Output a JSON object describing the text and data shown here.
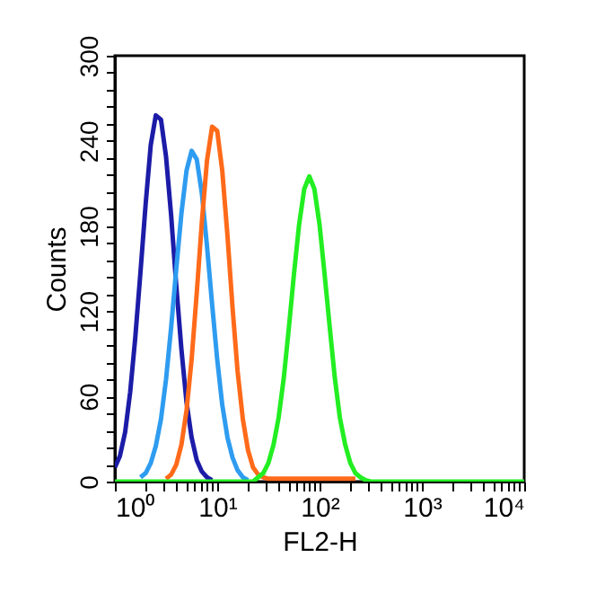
{
  "chart_data": {
    "type": "line",
    "xlabel": "FL2-H",
    "ylabel": "Counts",
    "log": "x",
    "grid": false,
    "legend": false,
    "marker": "none",
    "line_style": "solid",
    "x": [
      1,
      1.12,
      1.26,
      1.41,
      1.58,
      1.78,
      2,
      2.24,
      2.51,
      2.82,
      3.16,
      3.55,
      3.98,
      4.47,
      5.01,
      5.62,
      6.31,
      7.08,
      7.94,
      8.91,
      10,
      11.2,
      12.6,
      14.1,
      15.8,
      17.8,
      20,
      22.4,
      25.1,
      28.2,
      31.6,
      35.5,
      39.8,
      44.7,
      50.1,
      56.2,
      63.1,
      70.8,
      79.4,
      89.1,
      100,
      112,
      126,
      141,
      158,
      178,
      200,
      224,
      251,
      282,
      316,
      355,
      398,
      447,
      501,
      562,
      631,
      708,
      794,
      891,
      1000,
      10000
    ],
    "series": [
      {
        "color": "#1c1ca8",
        "values": [
          10,
          18,
          35,
          63,
          101,
          148,
          196,
          237,
          258,
          255,
          229,
          187,
          138,
          93,
          56,
          31,
          15,
          7,
          3,
          1,
          null,
          null,
          null,
          null,
          null,
          null,
          null,
          null,
          null,
          null,
          null,
          null,
          null,
          null,
          null,
          null,
          null,
          null,
          null,
          null,
          null,
          null,
          null,
          null,
          null,
          null,
          null,
          null,
          null,
          null,
          null,
          null,
          null,
          null,
          null,
          null,
          null,
          null,
          null,
          null,
          null,
          null
        ]
      },
      {
        "color": "#2e9cf0",
        "values": [
          null,
          null,
          null,
          null,
          null,
          3,
          6,
          13,
          25,
          44,
          72,
          109,
          150,
          189,
          219,
          233,
          227,
          203,
          166,
          125,
          86,
          54,
          31,
          17,
          8,
          3,
          1,
          null,
          null,
          null,
          null,
          null,
          null,
          null,
          null,
          null,
          null,
          null,
          null,
          null,
          null,
          null,
          null,
          null,
          null,
          null,
          null,
          null,
          null,
          null,
          null,
          null,
          null,
          null,
          null,
          null,
          null,
          null,
          null,
          null,
          null,
          null
        ]
      },
      {
        "color": "#ff6a1a",
        "values": [
          null,
          null,
          null,
          null,
          null,
          null,
          null,
          null,
          null,
          null,
          2,
          5,
          12,
          26,
          50,
          86,
          133,
          183,
          226,
          250,
          247,
          219,
          173,
          123,
          78,
          44,
          22,
          10,
          5,
          3,
          2,
          2,
          2,
          2,
          2,
          2,
          2,
          2,
          2,
          2,
          2,
          2,
          2,
          2,
          2,
          2,
          2,
          2,
          null,
          null,
          null,
          null,
          null,
          null,
          null,
          null,
          null,
          null,
          null,
          null,
          null,
          null
        ]
      },
      {
        "color": "#22ee22",
        "values": [
          0,
          0,
          0,
          0,
          0,
          0,
          0,
          0,
          0,
          0,
          0,
          0,
          0,
          0,
          0,
          0,
          0,
          0,
          0,
          0,
          0,
          0,
          0,
          0,
          0,
          0,
          0,
          0,
          3,
          6,
          13,
          26,
          45,
          73,
          108,
          146,
          181,
          206,
          215,
          206,
          181,
          146,
          108,
          73,
          45,
          26,
          13,
          6,
          3,
          1,
          0,
          0,
          0,
          0,
          0,
          0,
          0,
          0,
          0,
          0,
          0,
          0
        ]
      }
    ],
    "xlim": [
      1,
      10000
    ],
    "xticks": [
      {
        "value": 1,
        "label": "10⁰"
      },
      {
        "value": 2,
        "label": null
      },
      {
        "value": 3,
        "label": null
      },
      {
        "value": 4,
        "label": null
      },
      {
        "value": 5,
        "label": null
      },
      {
        "value": 6,
        "label": null
      },
      {
        "value": 7,
        "label": null
      },
      {
        "value": 8,
        "label": null
      },
      {
        "value": 9,
        "label": null
      },
      {
        "value": 10,
        "label": "10¹"
      },
      {
        "value": 20,
        "label": null
      },
      {
        "value": 30,
        "label": null
      },
      {
        "value": 40,
        "label": null
      },
      {
        "value": 50,
        "label": null
      },
      {
        "value": 60,
        "label": null
      },
      {
        "value": 70,
        "label": null
      },
      {
        "value": 80,
        "label": null
      },
      {
        "value": 90,
        "label": null
      },
      {
        "value": 100,
        "label": "10²"
      },
      {
        "value": 200,
        "label": null
      },
      {
        "value": 300,
        "label": null
      },
      {
        "value": 400,
        "label": null
      },
      {
        "value": 500,
        "label": null
      },
      {
        "value": 600,
        "label": null
      },
      {
        "value": 700,
        "label": null
      },
      {
        "value": 800,
        "label": null
      },
      {
        "value": 900,
        "label": null
      },
      {
        "value": 1000,
        "label": "10³"
      },
      {
        "value": 2000,
        "label": null
      },
      {
        "value": 3000,
        "label": null
      },
      {
        "value": 4000,
        "label": null
      },
      {
        "value": 5000,
        "label": null
      },
      {
        "value": 6000,
        "label": null
      },
      {
        "value": 7000,
        "label": null
      },
      {
        "value": 8000,
        "label": null
      },
      {
        "value": 9000,
        "label": null
      },
      {
        "value": 10000,
        "label": "10⁴"
      }
    ],
    "ylim": [
      0,
      300
    ],
    "yticks": [
      0,
      {
        "value": 12,
        "label": null
      },
      {
        "value": 24,
        "label": null
      },
      {
        "value": 36,
        "label": null
      },
      {
        "value": 48,
        "label": null
      },
      60,
      {
        "value": 72,
        "label": null
      },
      {
        "value": 84,
        "label": null
      },
      {
        "value": 96,
        "label": null
      },
      {
        "value": 108,
        "label": null
      },
      120,
      {
        "value": 132,
        "label": null
      },
      {
        "value": 144,
        "label": null
      },
      {
        "value": 156,
        "label": null
      },
      {
        "value": 168,
        "label": null
      },
      180,
      {
        "value": 192,
        "label": null
      },
      {
        "value": 204,
        "label": null
      },
      {
        "value": 216,
        "label": null
      },
      {
        "value": 228,
        "label": null
      },
      240,
      {
        "value": 252,
        "label": null
      },
      {
        "value": 264,
        "label": null
      },
      {
        "value": 276,
        "label": null
      },
      {
        "value": 288,
        "label": null
      },
      300
    ]
  }
}
